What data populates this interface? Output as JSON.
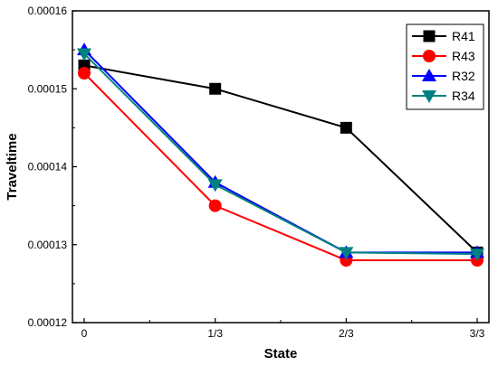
{
  "chart_data": {
    "type": "line",
    "xlabel": "State",
    "ylabel": "Traveltime",
    "categories": [
      "0",
      "1/3",
      "2/3",
      "3/3"
    ],
    "ylim": [
      0.00012,
      0.00016
    ],
    "yticks": [
      "0.00012",
      "0.00013",
      "0.00014",
      "0.00015",
      "0.00016"
    ],
    "grid": false,
    "legend_position": "top-right",
    "series": [
      {
        "name": "R41",
        "values": [
          0.000153,
          0.00015,
          0.000145,
          0.000129
        ],
        "color": "#000000",
        "marker": "square"
      },
      {
        "name": "R43",
        "values": [
          0.000152,
          0.000135,
          0.000128,
          0.000128
        ],
        "color": "#ff0000",
        "marker": "circle"
      },
      {
        "name": "R32",
        "values": [
          0.000155,
          0.000138,
          0.000129,
          0.000129
        ],
        "color": "#0000ff",
        "marker": "triangle-up"
      },
      {
        "name": "R34",
        "values": [
          0.0001545,
          0.0001377,
          0.000129,
          0.0001288
        ],
        "color": "#008080",
        "marker": "triangle-down"
      }
    ]
  }
}
